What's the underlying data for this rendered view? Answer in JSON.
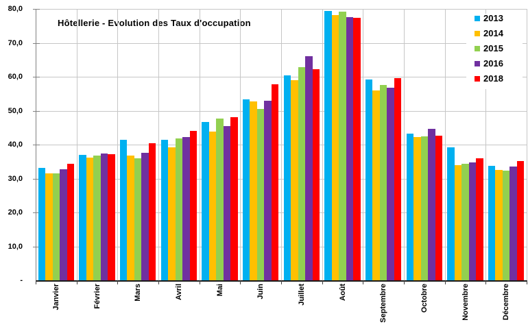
{
  "chart_data": {
    "type": "bar",
    "title": "Hôtellerie - Evolution des Taux d'occupation",
    "categories": [
      "Janvier",
      "Février",
      "Mars",
      "Avril",
      "Mai",
      "Juin",
      "Juillet",
      "Août",
      "Septembre",
      "Octobre",
      "Novembre",
      "Décembre"
    ],
    "series": [
      {
        "name": "2013",
        "color": "#00B0F0",
        "values": [
          33.2,
          37.0,
          41.5,
          41.4,
          46.7,
          53.4,
          60.5,
          79.3,
          59.2,
          43.2,
          39.2,
          33.7
        ]
      },
      {
        "name": "2014",
        "color": "#FFC000",
        "values": [
          31.6,
          36.2,
          36.8,
          39.2,
          43.8,
          52.7,
          59.0,
          78.2,
          56.0,
          42.2,
          34.0,
          32.5
        ]
      },
      {
        "name": "2015",
        "color": "#92D050",
        "values": [
          31.6,
          36.8,
          35.9,
          41.9,
          47.7,
          50.6,
          62.8,
          79.2,
          57.6,
          42.4,
          34.3,
          32.4
        ]
      },
      {
        "name": "2016",
        "color": "#7030A0",
        "values": [
          32.7,
          37.4,
          37.6,
          42.2,
          45.5,
          52.9,
          66.0,
          77.5,
          56.7,
          44.7,
          34.7,
          33.5
        ]
      },
      {
        "name": "2018",
        "color": "#FF0000",
        "values": [
          34.3,
          37.1,
          40.5,
          44.1,
          48.1,
          57.7,
          62.3,
          77.4,
          59.6,
          42.6,
          36.0,
          35.1
        ]
      }
    ],
    "ylabel": "",
    "xlabel": "",
    "ylim": [
      0,
      80
    ],
    "y_ticks": [
      {
        "value": 0,
        "label": "-"
      },
      {
        "value": 10,
        "label": "10,0"
      },
      {
        "value": 20,
        "label": "20,0"
      },
      {
        "value": 30,
        "label": "30,0"
      },
      {
        "value": 40,
        "label": "40,0"
      },
      {
        "value": 50,
        "label": "50,0"
      },
      {
        "value": 60,
        "label": "60,0"
      },
      {
        "value": 70,
        "label": "70,0"
      },
      {
        "value": 80,
        "label": "80,0"
      }
    ],
    "grid": true,
    "legend_position": "top-right",
    "gridline_color": "#C6C6C6",
    "axis_color": "#404040"
  }
}
